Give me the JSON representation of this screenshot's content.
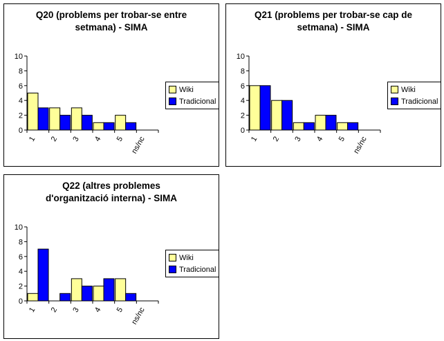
{
  "colors": {
    "wiki": "#FFFF99",
    "tradicional": "#0000FF"
  },
  "chart_data": [
    {
      "type": "bar",
      "title": [
        "Q20 (problems per trobar-se entre",
        "setmana) - SIMA"
      ],
      "categories": [
        "1",
        "2",
        "3",
        "4",
        "5",
        "ns/nc"
      ],
      "series": [
        {
          "name": "Wiki",
          "values": [
            5,
            3,
            3,
            1,
            2,
            0
          ]
        },
        {
          "name": "Tradicional",
          "values": [
            3,
            2,
            2,
            1,
            1,
            0
          ]
        }
      ],
      "yticks": [
        "0",
        "2",
        "4",
        "6",
        "8",
        "10"
      ],
      "ylim": [
        0,
        10
      ],
      "legend": "right"
    },
    {
      "type": "bar",
      "title": [
        "Q21 (problems per trobar-se cap de",
        "setmana) - SIMA"
      ],
      "categories": [
        "1",
        "2",
        "3",
        "4",
        "5",
        "ns/nc"
      ],
      "series": [
        {
          "name": "Wiki",
          "values": [
            6,
            4,
            1,
            2,
            1,
            0
          ]
        },
        {
          "name": "Tradicional",
          "values": [
            6,
            4,
            1,
            2,
            1,
            0
          ]
        }
      ],
      "yticks": [
        "0",
        "2",
        "4",
        "6",
        "8",
        "10"
      ],
      "ylim": [
        0,
        10
      ],
      "legend": "right"
    },
    {
      "type": "bar",
      "title": [
        "Q22 (altres problemes",
        "d'organització interna) - SIMA"
      ],
      "categories": [
        "1",
        "2",
        "3",
        "4",
        "5",
        "ns/nc"
      ],
      "series": [
        {
          "name": "Wiki",
          "values": [
            1,
            0,
            3,
            2,
            3,
            0
          ]
        },
        {
          "name": "Tradicional",
          "values": [
            7,
            1,
            2,
            3,
            1,
            0
          ]
        }
      ],
      "yticks": [
        "0",
        "2",
        "4",
        "6",
        "8",
        "10"
      ],
      "ylim": [
        0,
        10
      ],
      "legend": "right"
    }
  ]
}
